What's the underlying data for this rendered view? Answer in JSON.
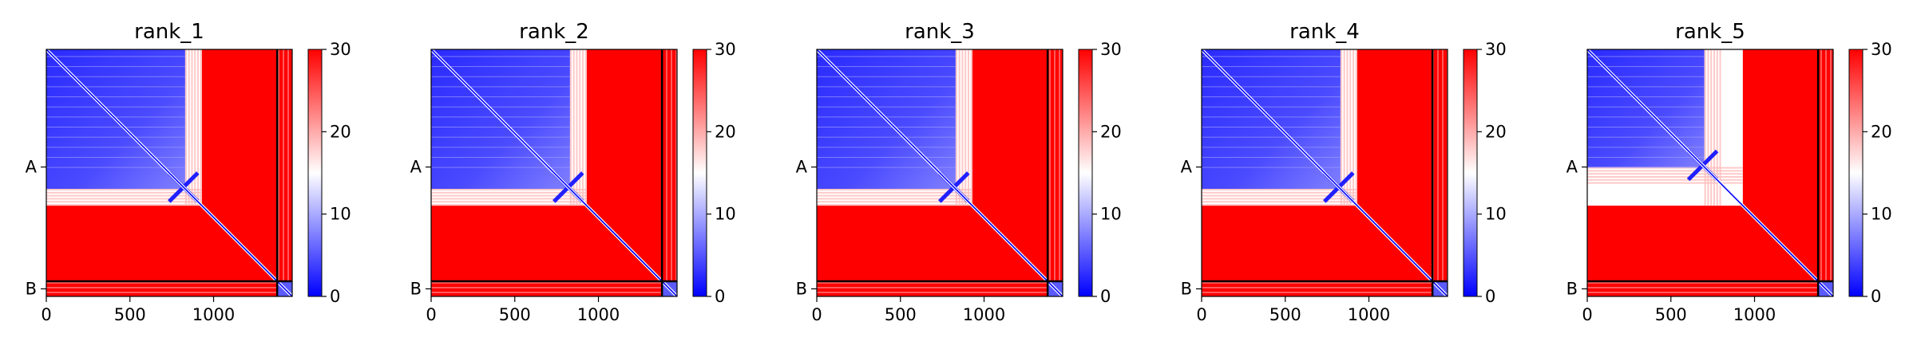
{
  "chart_data": {
    "type": "heatmap",
    "panel_titles": [
      "rank_1",
      "rank_2",
      "rank_3",
      "rank_4",
      "rank_5"
    ],
    "x_ticks": [
      "0",
      "500",
      "1000"
    ],
    "x_tick_values": [
      0,
      500,
      1000
    ],
    "y_ticks": [
      "A",
      "B"
    ],
    "y_tick_values": [
      700,
      1425
    ],
    "matrix_size": 1470,
    "chain_boundary": 1380,
    "colorbar": {
      "ticks": [
        "0",
        "10",
        "20",
        "30"
      ],
      "tick_values": [
        0,
        10,
        20,
        30
      ],
      "range": [
        0,
        30
      ]
    },
    "colormap": [
      "#0000ff",
      "#ffffff",
      "#ff0000"
    ],
    "grid": false,
    "panels": [
      {
        "title": "rank_1",
        "blue_domain_end": 930,
        "light_end": 830
      },
      {
        "title": "rank_2",
        "blue_domain_end": 930,
        "light_end": 830
      },
      {
        "title": "rank_3",
        "blue_domain_end": 930,
        "light_end": 830
      },
      {
        "title": "rank_4",
        "blue_domain_end": 930,
        "light_end": 830
      },
      {
        "title": "rank_5",
        "blue_domain_end": 930,
        "light_end": 700
      }
    ]
  }
}
